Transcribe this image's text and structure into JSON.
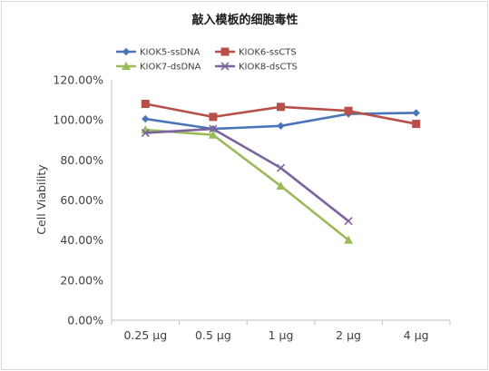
{
  "chart_data": {
    "type": "line",
    "title": "敲入模板的细胞毒性",
    "ylabel": "Cell Viability",
    "xlabel": "",
    "categories": [
      "0.25 μg",
      "0.5 μg",
      "1 μg",
      "2 μg",
      "4 μg"
    ],
    "y_ticks": [
      "0.00%",
      "20.00%",
      "40.00%",
      "60.00%",
      "80.00%",
      "100.00%",
      "120.00%"
    ],
    "ylim": [
      0,
      120
    ],
    "grid": false,
    "legend_position": "top",
    "series": [
      {
        "name": "KIOK5-ssDNA",
        "color": "#4a76b8",
        "marker": "diamond",
        "values": [
          100.5,
          95.5,
          97,
          103,
          103.5
        ]
      },
      {
        "name": "KIOK6-ssCTS",
        "color": "#b8504a",
        "marker": "square",
        "values": [
          108,
          101.5,
          106.5,
          104.5,
          98
        ]
      },
      {
        "name": "KIOK7-dsDNA",
        "color": "#9bbb59",
        "marker": "triangle",
        "values": [
          95,
          92.5,
          67,
          40,
          null
        ]
      },
      {
        "name": "KIOK8-dsCTS",
        "color": "#7e649e",
        "marker": "x",
        "values": [
          93.5,
          95.5,
          76,
          49.5,
          null
        ]
      }
    ]
  }
}
